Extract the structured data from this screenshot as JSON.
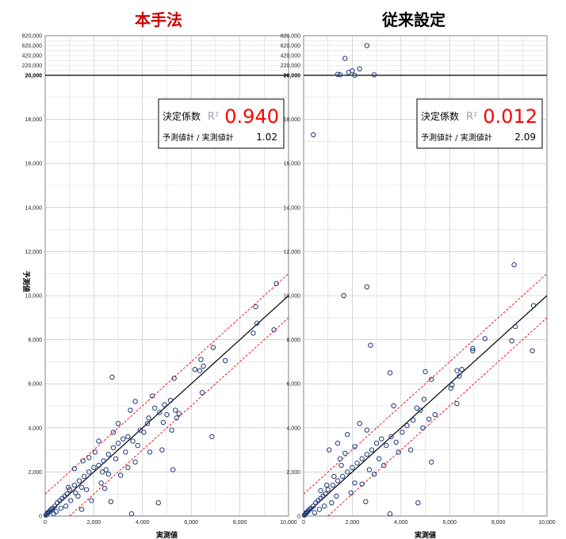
{
  "labels": {
    "ylabel": "予測値",
    "xlabel": "実測値"
  },
  "chart_data": [
    {
      "type": "scatter",
      "title": "本手法",
      "title_color": "#cc0000",
      "xlabel": "実測値",
      "ylabel": "予測値",
      "xlim": [
        0,
        10000
      ],
      "ylim": [
        0,
        20000
      ],
      "upper_ylim": [
        20000,
        820000
      ],
      "x_ticks": [
        "0",
        "2,000",
        "4,000",
        "6,000",
        "8,000",
        "10,000"
      ],
      "y_ticks": [
        "0",
        "2,000",
        "4,000",
        "6,000",
        "8,000",
        "10,000",
        "12,000",
        "14,000",
        "16,000",
        "18,000",
        "20,000"
      ],
      "upper_ticks": [
        "220,000",
        "420,000",
        "620,000",
        "820,000"
      ],
      "r2_label": "決定係数",
      "r2_symbol": "R²",
      "r2_value": "0.940",
      "ratio_label": "予測値計 / 実測値計",
      "ratio_value": "1.02",
      "identity_line": {
        "from": [
          0,
          0
        ],
        "to": [
          10000,
          10000
        ],
        "color": "#000000"
      },
      "band_lines": [
        {
          "from": [
            0,
            1000
          ],
          "to": [
            10000,
            11000
          ],
          "color": "#ff0000",
          "style": "dashed"
        },
        {
          "from": [
            1000,
            0
          ],
          "to": [
            10000,
            9000
          ],
          "color": "#ff0000",
          "style": "dashed"
        }
      ],
      "marker_color": "#1f3a7a",
      "points": [
        [
          9500,
          10550
        ],
        [
          8650,
          9500
        ],
        [
          8700,
          8750
        ],
        [
          8550,
          8300
        ],
        [
          9400,
          8450
        ],
        [
          7400,
          7050
        ],
        [
          6900,
          7650
        ],
        [
          6400,
          7100
        ],
        [
          6500,
          6800
        ],
        [
          6150,
          6650
        ],
        [
          6350,
          6600
        ],
        [
          6450,
          5600
        ],
        [
          5300,
          6250
        ],
        [
          6850,
          3600
        ],
        [
          5250,
          2100
        ],
        [
          4650,
          600
        ],
        [
          3550,
          100
        ],
        [
          2750,
          6300
        ],
        [
          5150,
          5250
        ],
        [
          4900,
          5050
        ],
        [
          4500,
          4900
        ],
        [
          5500,
          4650
        ],
        [
          5000,
          4600
        ],
        [
          4400,
          5450
        ],
        [
          4700,
          4700
        ],
        [
          5400,
          4450
        ],
        [
          5350,
          4800
        ],
        [
          4850,
          4250
        ],
        [
          4250,
          4450
        ],
        [
          3900,
          3900
        ],
        [
          5200,
          3900
        ],
        [
          4050,
          3800
        ],
        [
          3400,
          3600
        ],
        [
          3600,
          3400
        ],
        [
          3800,
          3200
        ],
        [
          3200,
          3500
        ],
        [
          3000,
          3300
        ],
        [
          2800,
          3100
        ],
        [
          3300,
          2900
        ],
        [
          2600,
          2800
        ],
        [
          2400,
          2500
        ],
        [
          2900,
          2600
        ],
        [
          2200,
          2300
        ],
        [
          2000,
          2200
        ],
        [
          1800,
          2000
        ],
        [
          2500,
          2100
        ],
        [
          1600,
          1800
        ],
        [
          1400,
          1600
        ],
        [
          1200,
          1400
        ],
        [
          1000,
          1200
        ],
        [
          900,
          1000
        ],
        [
          800,
          900
        ],
        [
          700,
          800
        ],
        [
          600,
          700
        ],
        [
          500,
          600
        ],
        [
          400,
          450
        ],
        [
          300,
          350
        ],
        [
          250,
          300
        ],
        [
          200,
          250
        ],
        [
          150,
          180
        ],
        [
          100,
          150
        ],
        [
          80,
          100
        ],
        [
          50,
          60
        ],
        [
          30,
          40
        ],
        [
          3700,
          2450
        ],
        [
          4800,
          3000
        ],
        [
          4300,
          2900
        ],
        [
          2300,
          1500
        ],
        [
          2600,
          1900
        ],
        [
          3400,
          2200
        ],
        [
          1700,
          1200
        ],
        [
          2700,
          650
        ],
        [
          1900,
          700
        ],
        [
          1500,
          300
        ],
        [
          2450,
          1250
        ],
        [
          3100,
          1850
        ],
        [
          1200,
          2150
        ],
        [
          1550,
          2500
        ],
        [
          2200,
          3400
        ],
        [
          3000,
          4200
        ],
        [
          3500,
          4800
        ],
        [
          4200,
          4200
        ],
        [
          3700,
          5200
        ],
        [
          2800,
          3800
        ],
        [
          1350,
          900
        ],
        [
          1050,
          700
        ],
        [
          850,
          450
        ],
        [
          650,
          350
        ],
        [
          450,
          200
        ],
        [
          350,
          100
        ],
        [
          1800,
          2650
        ],
        [
          2050,
          2900
        ],
        [
          2350,
          2000
        ],
        [
          1500,
          1300
        ],
        [
          1250,
          1050
        ],
        [
          950,
          1300
        ]
      ],
      "upper_points": []
    },
    {
      "type": "scatter",
      "title": "従来設定",
      "title_color": "#000000",
      "xlabel": "実測値",
      "ylabel": "予測値",
      "xlim": [
        0,
        10000
      ],
      "ylim": [
        0,
        20000
      ],
      "upper_ylim": [
        20000,
        820000
      ],
      "x_ticks": [
        "0",
        "2,000",
        "4,000",
        "6,000",
        "8,000",
        "10,000"
      ],
      "y_ticks": [
        "0",
        "2,000",
        "4,000",
        "6,000",
        "8,000",
        "10,000",
        "12,000",
        "14,000",
        "16,000",
        "18,000",
        "20,000"
      ],
      "upper_ticks": [
        "220,000",
        "420,000",
        "620,000",
        "820,000"
      ],
      "r2_label": "決定係数",
      "r2_symbol": "R²",
      "r2_value": "0.012",
      "ratio_label": "予測値計 / 実測値計",
      "ratio_value": "2.09",
      "identity_line": {
        "from": [
          0,
          0
        ],
        "to": [
          10000,
          10000
        ],
        "color": "#000000"
      },
      "band_lines": [
        {
          "from": [
            0,
            1000
          ],
          "to": [
            10000,
            11000
          ],
          "color": "#ff0000",
          "style": "dashed"
        },
        {
          "from": [
            1000,
            0
          ],
          "to": [
            10000,
            9000
          ],
          "color": "#ff0000",
          "style": "dashed"
        }
      ],
      "marker_color": "#1f3a7a",
      "points": [
        [
          8650,
          11400
        ],
        [
          9450,
          9550
        ],
        [
          8700,
          8600
        ],
        [
          8550,
          7950
        ],
        [
          9400,
          7500
        ],
        [
          7450,
          8050
        ],
        [
          6950,
          7600
        ],
        [
          6950,
          7500
        ],
        [
          6300,
          6600
        ],
        [
          6500,
          6650
        ],
        [
          6400,
          6350
        ],
        [
          6050,
          5800
        ],
        [
          6100,
          5950
        ],
        [
          6300,
          5100
        ],
        [
          2600,
          10400
        ],
        [
          1650,
          10000
        ],
        [
          2750,
          7750
        ],
        [
          3550,
          6500
        ],
        [
          400,
          17300
        ],
        [
          5250,
          6200
        ],
        [
          5000,
          6550
        ],
        [
          4950,
          5300
        ],
        [
          4650,
          4900
        ],
        [
          4800,
          4800
        ],
        [
          5400,
          4600
        ],
        [
          5150,
          4400
        ],
        [
          4500,
          4350
        ],
        [
          4250,
          4100
        ],
        [
          4050,
          3800
        ],
        [
          3600,
          3600
        ],
        [
          3800,
          3350
        ],
        [
          3400,
          3200
        ],
        [
          3200,
          3500
        ],
        [
          3000,
          3300
        ],
        [
          2800,
          3000
        ],
        [
          2600,
          2800
        ],
        [
          2400,
          2600
        ],
        [
          2200,
          2400
        ],
        [
          2000,
          2200
        ],
        [
          1800,
          2000
        ],
        [
          1600,
          1800
        ],
        [
          1400,
          1600
        ],
        [
          1200,
          1400
        ],
        [
          1000,
          1200
        ],
        [
          900,
          1000
        ],
        [
          800,
          900
        ],
        [
          700,
          800
        ],
        [
          600,
          700
        ],
        [
          500,
          600
        ],
        [
          400,
          450
        ],
        [
          300,
          350
        ],
        [
          250,
          300
        ],
        [
          200,
          250
        ],
        [
          150,
          180
        ],
        [
          100,
          150
        ],
        [
          80,
          100
        ],
        [
          50,
          60
        ],
        [
          30,
          40
        ],
        [
          5250,
          2450
        ],
        [
          4700,
          600
        ],
        [
          3550,
          100
        ],
        [
          2550,
          650
        ],
        [
          1950,
          1050
        ],
        [
          2400,
          1450
        ],
        [
          1550,
          2300
        ],
        [
          1050,
          3000
        ],
        [
          1400,
          3300
        ],
        [
          1800,
          3700
        ],
        [
          2300,
          4200
        ],
        [
          2600,
          3900
        ],
        [
          3700,
          5000
        ],
        [
          4400,
          3000
        ],
        [
          4900,
          4000
        ],
        [
          3300,
          2300
        ],
        [
          2900,
          1900
        ],
        [
          1350,
          900
        ],
        [
          1150,
          600
        ],
        [
          850,
          450
        ],
        [
          650,
          300
        ],
        [
          450,
          150
        ],
        [
          2100,
          1500
        ],
        [
          2700,
          2100
        ],
        [
          3100,
          2600
        ],
        [
          3900,
          2900
        ],
        [
          1700,
          2850
        ],
        [
          2100,
          3150
        ],
        [
          1250,
          1800
        ],
        [
          950,
          1400
        ],
        [
          700,
          1150
        ],
        [
          1500,
          2600
        ]
      ],
      "upper_points": [
        [
          1400,
          40000
        ],
        [
          1500,
          30000
        ],
        [
          1700,
          360000
        ],
        [
          1850,
          80000
        ],
        [
          2000,
          110000
        ],
        [
          2100,
          20000
        ],
        [
          2300,
          150000
        ],
        [
          2600,
          620000
        ],
        [
          2900,
          30000
        ]
      ]
    }
  ]
}
